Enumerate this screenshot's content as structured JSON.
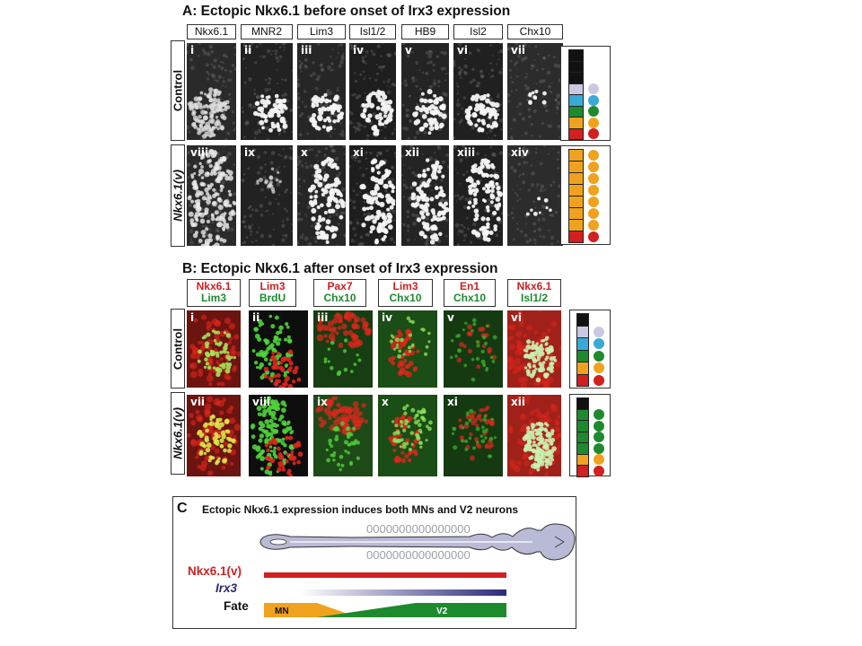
{
  "section_a": {
    "title": "A: Ectopic Nkx6.1 before onset of Irx3 expression",
    "columns": [
      "Nkx6.1",
      "MNR2",
      "Lim3",
      "Isl1/2",
      "HB9",
      "Isl2",
      "Chx10"
    ],
    "rows": [
      "Control",
      "Nkx6.1(v)"
    ],
    "panel_labels_row1": [
      "i",
      "ii",
      "iii",
      "iv",
      "v",
      "vi",
      "vii"
    ],
    "panel_labels_row2": [
      "viii",
      "ix",
      "x",
      "xi",
      "xii",
      "xiii",
      "xiv"
    ]
  },
  "section_b": {
    "title": "B: Ectopic Nkx6.1 after onset of Irx3 expression",
    "columns": [
      {
        "red": "Nkx6.1",
        "green": "Lim3"
      },
      {
        "red": "Lim3",
        "green": "BrdU"
      },
      {
        "red": "Pax7",
        "green": "Chx10"
      },
      {
        "red": "Lim3",
        "green": "Chx10"
      },
      {
        "red": "En1",
        "green": "Chx10"
      },
      {
        "red": "Nkx6.1",
        "green": "Isl1/2"
      }
    ],
    "rows": [
      "Control",
      "Nkx6.1(v)"
    ],
    "panel_labels_row1": [
      "i",
      "ii",
      "iii",
      "iv",
      "v",
      "vi"
    ],
    "panel_labels_row2": [
      "vii",
      "viii",
      "ix",
      "x",
      "xi",
      "xii"
    ]
  },
  "section_c": {
    "label": "C",
    "title": "Ectopic Nkx6.1 expression induces both MNs and V2 neurons",
    "somite_glyphs": "0000000000000000",
    "row_labels": {
      "nkx": "Nkx6.1(v)",
      "irx": "Irx3",
      "fate": "Fate"
    },
    "fate_labels": {
      "mn": "MN",
      "v2": "V2"
    }
  },
  "colors": {
    "red": "#d21f1f",
    "orange": "#f0a21e",
    "green": "#1e8a2e",
    "cyan": "#39a9d6",
    "lavender": "#c9c9e3",
    "black": "#111111",
    "navy": "#2b2a7a",
    "embryo": "#b9bbd6"
  },
  "legends": {
    "a_control": [
      {
        "box": "#111111",
        "dot": null
      },
      {
        "box": "#111111",
        "dot": null
      },
      {
        "box": "#111111",
        "dot": null
      },
      {
        "box": "#c9c9e3",
        "dot": "#c9c9e3"
      },
      {
        "box": "#39a9d6",
        "dot": "#39a9d6"
      },
      {
        "box": "#1e8a2e",
        "dot": "#1e8a2e"
      },
      {
        "box": "#f0a21e",
        "dot": "#f0a21e"
      },
      {
        "box": "#d21f1f",
        "dot": "#d21f1f"
      }
    ],
    "a_nkx": [
      {
        "box": "#f0a21e",
        "dot": "#f0a21e"
      },
      {
        "box": "#f0a21e",
        "dot": "#f0a21e"
      },
      {
        "box": "#f0a21e",
        "dot": "#f0a21e"
      },
      {
        "box": "#f0a21e",
        "dot": "#f0a21e"
      },
      {
        "box": "#f0a21e",
        "dot": "#f0a21e"
      },
      {
        "box": "#f0a21e",
        "dot": "#f0a21e"
      },
      {
        "box": "#f0a21e",
        "dot": "#f0a21e"
      },
      {
        "box": "#d21f1f",
        "dot": "#d21f1f"
      }
    ],
    "b_control": [
      {
        "box": "#111111",
        "dot": null
      },
      {
        "box": "#c9c9e3",
        "dot": "#c9c9e3"
      },
      {
        "box": "#39a9d6",
        "dot": "#39a9d6"
      },
      {
        "box": "#1e8a2e",
        "dot": "#1e8a2e"
      },
      {
        "box": "#f0a21e",
        "dot": "#f0a21e"
      },
      {
        "box": "#d21f1f",
        "dot": "#d21f1f"
      }
    ],
    "b_nkx": [
      {
        "box": "#111111",
        "dot": null
      },
      {
        "box": "#1e8a2e",
        "dot": "#1e8a2e"
      },
      {
        "box": "#1e8a2e",
        "dot": "#1e8a2e"
      },
      {
        "box": "#1e8a2e",
        "dot": "#1e8a2e"
      },
      {
        "box": "#1e8a2e",
        "dot": "#1e8a2e"
      },
      {
        "box": "#f0a21e",
        "dot": "#f0a21e"
      },
      {
        "box": "#d21f1f",
        "dot": "#d21f1f"
      }
    ]
  }
}
